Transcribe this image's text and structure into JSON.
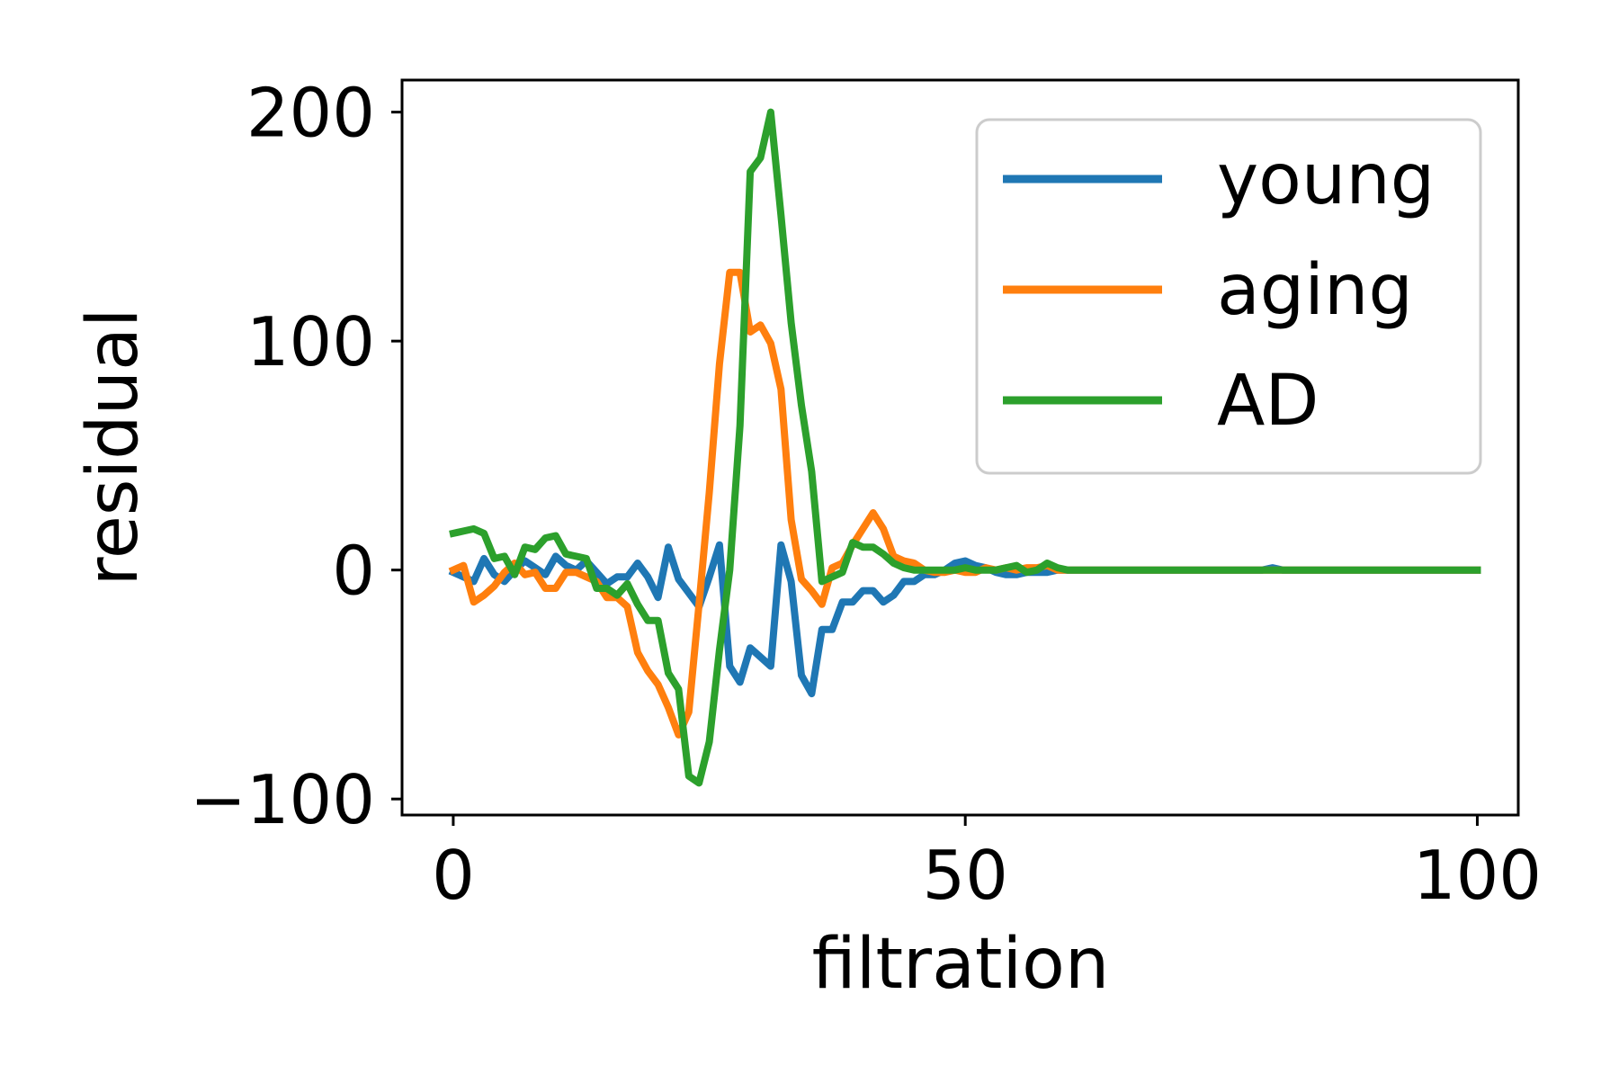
{
  "chart_data": {
    "type": "line",
    "title": "",
    "xlabel": "filtration",
    "ylabel": "residual",
    "xlim": [
      -5,
      104
    ],
    "ylim": [
      -107,
      214
    ],
    "xticks": [
      0,
      50,
      100
    ],
    "yticks": [
      -100,
      0,
      100,
      200
    ],
    "xtick_labels": [
      "0",
      "50",
      "100"
    ],
    "ytick_labels": [
      "−100",
      "0",
      "100",
      "200"
    ],
    "grid": false,
    "legend_position": "top-right",
    "x": [
      0,
      1,
      2,
      3,
      4,
      5,
      6,
      7,
      8,
      9,
      10,
      11,
      12,
      13,
      14,
      15,
      16,
      17,
      18,
      19,
      20,
      21,
      22,
      23,
      24,
      25,
      26,
      27,
      28,
      29,
      30,
      31,
      32,
      33,
      34,
      35,
      36,
      37,
      38,
      39,
      40,
      41,
      42,
      43,
      44,
      45,
      46,
      47,
      48,
      49,
      50,
      51,
      52,
      53,
      54,
      55,
      56,
      57,
      58,
      59,
      60,
      61,
      62,
      63,
      64,
      65,
      66,
      67,
      68,
      69,
      70,
      71,
      72,
      73,
      74,
      75,
      76,
      77,
      78,
      79,
      80,
      81,
      82,
      83,
      84,
      85,
      86,
      87,
      88,
      89,
      90,
      91,
      92,
      93,
      94,
      95,
      96,
      97,
      98,
      99,
      100
    ],
    "series": [
      {
        "name": "young",
        "color": "#1f77b4",
        "values": [
          -1,
          -3,
          -5,
          5,
          -2,
          -5,
          0,
          4,
          1,
          -2,
          6,
          2,
          0,
          4,
          -1,
          -6,
          -3,
          -3,
          3,
          -3,
          -12,
          10,
          -4,
          -10,
          -16,
          -3,
          11,
          -42,
          -49,
          -34,
          -38,
          -42,
          11,
          -5,
          -46,
          -54,
          -26,
          -26,
          -14,
          -14,
          -9,
          -9,
          -14,
          -11,
          -5,
          -5,
          -2,
          -2,
          0,
          3,
          4,
          2,
          1,
          -1,
          -2,
          -2,
          -1,
          -1,
          -1,
          0,
          0,
          0,
          0,
          0,
          0,
          0,
          0,
          0,
          0,
          0,
          0,
          0,
          0,
          0,
          0,
          0,
          0,
          0,
          0,
          0,
          1,
          0,
          0,
          0,
          0,
          0,
          0,
          0,
          0,
          0,
          0,
          0,
          0,
          0,
          0,
          0,
          0,
          0,
          0,
          0,
          0
        ]
      },
      {
        "name": "aging",
        "color": "#ff7f0e",
        "values": [
          0,
          2,
          -14,
          -11,
          -7,
          -1,
          3,
          -2,
          -1,
          -8,
          -8,
          -1,
          -1,
          -3,
          -5,
          -12,
          -12,
          -16,
          -36,
          -44,
          -50,
          -60,
          -72,
          -62,
          -15,
          34,
          90,
          130,
          130,
          104,
          107,
          99,
          79,
          22,
          -4,
          -9,
          -15,
          1,
          3,
          11,
          18,
          25,
          18,
          6,
          4,
          3,
          0,
          -1,
          -1,
          0,
          -1,
          -1,
          1,
          0,
          1,
          0,
          1,
          1,
          2,
          0,
          0,
          0,
          0,
          0,
          0,
          0,
          0,
          0,
          0,
          0,
          0,
          0,
          0,
          0,
          0,
          0,
          0,
          0,
          0,
          0,
          0,
          0,
          0,
          0,
          0,
          0,
          0,
          0,
          0,
          0,
          0,
          0,
          0,
          0,
          0,
          0,
          0,
          0,
          0,
          0,
          0
        ]
      },
      {
        "name": "AD",
        "color": "#2ca02c",
        "values": [
          16,
          17,
          18,
          16,
          5,
          6,
          -2,
          10,
          9,
          14,
          15,
          7,
          6,
          5,
          -8,
          -8,
          -11,
          -6,
          -15,
          -22,
          -22,
          -45,
          -52,
          -90,
          -93,
          -75,
          -35,
          0,
          63,
          174,
          180,
          200,
          155,
          108,
          72,
          43,
          -5,
          -3,
          -1,
          12,
          10,
          10,
          7,
          3,
          1,
          0,
          0,
          0,
          0,
          0,
          1,
          0,
          0,
          0,
          1,
          2,
          -1,
          0,
          3,
          1,
          0,
          0,
          0,
          0,
          0,
          0,
          0,
          0,
          0,
          0,
          0,
          0,
          0,
          0,
          0,
          0,
          0,
          0,
          0,
          0,
          0,
          0,
          0,
          0,
          0,
          0,
          0,
          0,
          0,
          0,
          0,
          0,
          0,
          0,
          0,
          0,
          0,
          0,
          0,
          0,
          0
        ]
      }
    ]
  }
}
